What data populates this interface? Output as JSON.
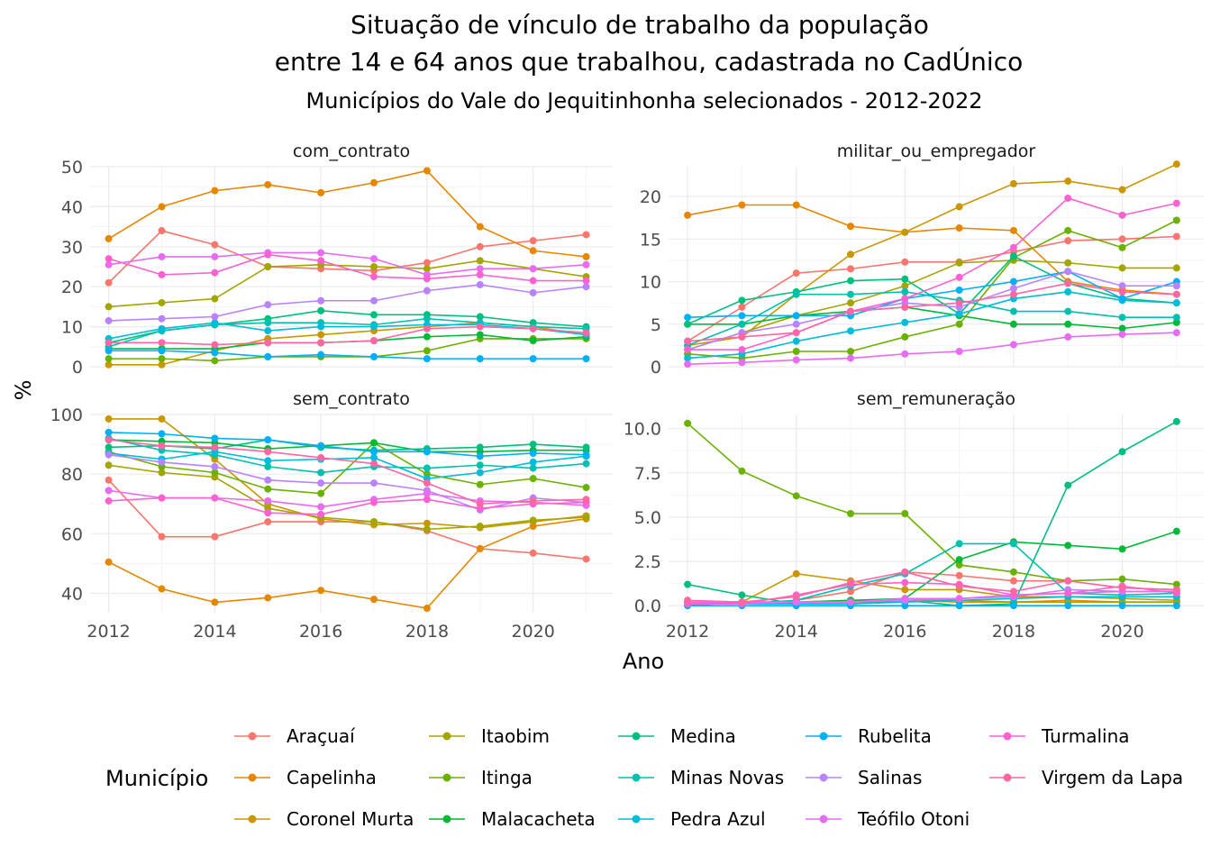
{
  "chart_data": {
    "type": "line",
    "title_lines": [
      "Situação de vínculo de trabalho da população",
      "entre 14 e 64 anos que trabalhou, cadastrada no CadÚnico"
    ],
    "subtitle": "Municípios do Vale do Jequitinhonha selecionados - 2012-2022",
    "xlabel": "Ano",
    "ylabel": "%",
    "legend_title": "Município",
    "legend_position": "bottom",
    "grid": true,
    "x": [
      2012,
      2013,
      2014,
      2015,
      2016,
      2017,
      2018,
      2019,
      2020,
      2021
    ],
    "x_ticks": [
      "2012",
      "2014",
      "2016",
      "2018",
      "2020"
    ],
    "municipios": [
      {
        "name": "Araçuaí",
        "color": "#F8766D"
      },
      {
        "name": "Capelinha",
        "color": "#E58700"
      },
      {
        "name": "Coronel Murta",
        "color": "#C99800"
      },
      {
        "name": "Itaobim",
        "color": "#A3A500"
      },
      {
        "name": "Itinga",
        "color": "#6BB100"
      },
      {
        "name": "Malacacheta",
        "color": "#00BA38"
      },
      {
        "name": "Medina",
        "color": "#00BF7D"
      },
      {
        "name": "Minas Novas",
        "color": "#00C0AF"
      },
      {
        "name": "Pedra Azul",
        "color": "#00BCD8"
      },
      {
        "name": "Rubelita",
        "color": "#00B0F6"
      },
      {
        "name": "Salinas",
        "color": "#B983FF"
      },
      {
        "name": "Teófilo Otoni",
        "color": "#E76BF3"
      },
      {
        "name": "Turmalina",
        "color": "#FD61D1"
      },
      {
        "name": "Virgem da Lapa",
        "color": "#FF67A4"
      }
    ],
    "facets": [
      {
        "label": "com_contrato",
        "ylim": [
          0,
          50
        ],
        "y_ticks": [
          "0",
          "10",
          "20",
          "30",
          "40",
          "50"
        ],
        "y_tick_values": [
          0,
          10,
          20,
          30,
          40,
          50
        ],
        "series": [
          {
            "name": "Araçuaí",
            "values": [
              21,
              34,
              30.5,
              25,
              24.5,
              24,
              26,
              30,
              31.5,
              33
            ]
          },
          {
            "name": "Capelinha",
            "values": [
              32,
              40,
              44,
              45.5,
              43.5,
              46,
              49,
              35,
              29,
              27.5
            ]
          },
          {
            "name": "Coronel Murta",
            "values": [
              0.5,
              0.5,
              4,
              7,
              8,
              9,
              10,
              11,
              10,
              8
            ]
          },
          {
            "name": "Itaobim",
            "values": [
              15,
              16,
              17,
              25,
              25.5,
              25,
              24.5,
              26.5,
              24.5,
              22.5
            ]
          },
          {
            "name": "Itinga",
            "values": [
              2,
              2,
              1.5,
              2.5,
              2.5,
              2.5,
              4,
              7,
              7,
              7
            ]
          },
          {
            "name": "Malacacheta",
            "values": [
              4.5,
              4.5,
              4.5,
              6,
              6,
              6.5,
              7.5,
              8,
              6.5,
              7.5
            ]
          },
          {
            "name": "Medina",
            "values": [
              6,
              9,
              10.5,
              12,
              14,
              13,
              13,
              12.5,
              11,
              10
            ]
          },
          {
            "name": "Minas Novas",
            "values": [
              5,
              9,
              10.5,
              11,
              11,
              10.5,
              12,
              11,
              10,
              9.5
            ]
          },
          {
            "name": "Pedra Azul",
            "values": [
              7,
              9.5,
              11,
              9,
              10,
              10,
              10.5,
              10.5,
              9.5,
              8
            ]
          },
          {
            "name": "Rubelita",
            "values": [
              4,
              4,
              3.5,
              2.5,
              3,
              2.5,
              2,
              2,
              2,
              2
            ]
          },
          {
            "name": "Salinas",
            "values": [
              11.5,
              12,
              12.5,
              15.5,
              16.5,
              16.5,
              19,
              20.5,
              18.5,
              20
            ]
          },
          {
            "name": "Teófilo Otoni",
            "values": [
              25.5,
              27.5,
              27.5,
              28.5,
              28.5,
              27,
              23,
              24.5,
              24.5,
              25.5
            ]
          },
          {
            "name": "Turmalina",
            "values": [
              27,
              23,
              23.5,
              28,
              26.5,
              22.5,
              22,
              23,
              21.5,
              21.5
            ]
          },
          {
            "name": "Virgem da Lapa",
            "values": [
              6,
              6,
              5.5,
              6,
              6,
              6.5,
              9.5,
              10,
              9.5,
              8.5
            ]
          }
        ]
      },
      {
        "label": "militar_ou_empregador",
        "ylim": [
          0,
          23.5
        ],
        "y_ticks": [
          "0",
          "5",
          "10",
          "15",
          "20"
        ],
        "y_tick_values": [
          0,
          5,
          10,
          15,
          20
        ],
        "series": [
          {
            "name": "Araçuaí",
            "values": [
              3,
              7,
              11,
              11.5,
              12.3,
              12.3,
              13.5,
              14.8,
              15,
              15.3
            ]
          },
          {
            "name": "Capelinha",
            "values": [
              17.8,
              19,
              19,
              16.5,
              15.8,
              16.3,
              16,
              10,
              9,
              8.5
            ]
          },
          {
            "name": "Coronel Murta",
            "values": [
              2.5,
              3.5,
              8.5,
              13.2,
              15.8,
              18.8,
              21.5,
              21.8,
              20.8,
              23.8
            ]
          },
          {
            "name": "Itaobim",
            "values": [
              2,
              4,
              6,
              7.5,
              9.5,
              12.2,
              12.5,
              12.2,
              11.6,
              11.6
            ]
          },
          {
            "name": "Itinga",
            "values": [
              1.5,
              1,
              1.8,
              1.8,
              3.5,
              5,
              12.8,
              16,
              14,
              17.2
            ]
          },
          {
            "name": "Malacacheta",
            "values": [
              5,
              5,
              6,
              6.5,
              7,
              6,
              5,
              5,
              4.5,
              5.2
            ]
          },
          {
            "name": "Medina",
            "values": [
              5,
              7.8,
              8.8,
              10.1,
              10.3,
              6.2,
              13,
              9.8,
              8,
              7.5
            ]
          },
          {
            "name": "Minas Novas",
            "values": [
              2.5,
              5,
              8.5,
              8.5,
              8.8,
              7.8,
              6.5,
              6.5,
              5.8,
              5.8
            ]
          },
          {
            "name": "Pedra Azul",
            "values": [
              1,
              1.5,
              3,
              4.2,
              5.2,
              6.2,
              8,
              8.8,
              7.8,
              7.5
            ]
          },
          {
            "name": "Rubelita",
            "values": [
              5.8,
              6,
              6,
              6,
              8,
              9,
              10,
              11.2,
              8,
              10
            ]
          },
          {
            "name": "Salinas",
            "values": [
              2,
              4,
              5,
              6.5,
              7.5,
              7,
              9.2,
              11.2,
              9.5,
              9.5
            ]
          },
          {
            "name": "Teófilo Otoni",
            "values": [
              0.3,
              0.5,
              0.8,
              1,
              1.5,
              1.8,
              2.6,
              3.5,
              3.8,
              4
            ]
          },
          {
            "name": "Turmalina",
            "values": [
              2,
              2,
              4,
              6.5,
              8,
              10.5,
              14,
              19.8,
              17.8,
              19.2
            ]
          },
          {
            "name": "Virgem da Lapa",
            "values": [
              3,
              3.5,
              4,
              6.5,
              7,
              7.5,
              8.5,
              9.8,
              8.8,
              8.5
            ]
          }
        ]
      },
      {
        "label": "sem_contrato",
        "ylim": [
          33.5,
          100
        ],
        "y_ticks": [
          "40",
          "60",
          "80",
          "100"
        ],
        "y_tick_values": [
          40,
          60,
          80,
          100
        ],
        "series": [
          {
            "name": "Araçuaí",
            "values": [
              78,
              59,
              59,
              64,
              64,
              64,
              61,
              55,
              53.5,
              51.5
            ]
          },
          {
            "name": "Capelinha",
            "values": [
              50.5,
              41.5,
              37,
              38.5,
              41,
              38,
              35,
              55,
              62.5,
              65
            ]
          },
          {
            "name": "Coronel Murta",
            "values": [
              98.5,
              98.5,
              85,
              70,
              65,
              63,
              63.5,
              62,
              64,
              66
            ]
          },
          {
            "name": "Itaobim",
            "values": [
              83,
              80.5,
              79,
              68.5,
              65.5,
              64,
              61.5,
              62.5,
              64.5,
              65.5
            ]
          },
          {
            "name": "Itinga",
            "values": [
              87.5,
              82.5,
              80.5,
              75,
              73.5,
              90.5,
              80,
              76.5,
              78.5,
              75.5
            ]
          },
          {
            "name": "Malacacheta",
            "values": [
              91.5,
              91,
              90.5,
              88.5,
              89.5,
              90.5,
              87.5,
              87.5,
              88,
              88
            ]
          },
          {
            "name": "Medina",
            "values": [
              89,
              89.5,
              88.5,
              91.5,
              89,
              88,
              88.5,
              89,
              90,
              89
            ]
          },
          {
            "name": "Minas Novas",
            "values": [
              92,
              88,
              86.5,
              82.5,
              80.5,
              82.5,
              82,
              83,
              82,
              83.5
            ]
          },
          {
            "name": "Pedra Azul",
            "values": [
              87,
              85,
              87.5,
              84.5,
              85,
              85.5,
              78.5,
              80.5,
              84,
              86
            ]
          },
          {
            "name": "Rubelita",
            "values": [
              94,
              93.5,
              92,
              91.5,
              89.5,
              87.5,
              87.5,
              86,
              87,
              86.5
            ]
          },
          {
            "name": "Salinas",
            "values": [
              86.5,
              84,
              82.5,
              78,
              77,
              77,
              74.5,
              68,
              72,
              70.5
            ]
          },
          {
            "name": "Teófilo Otoni",
            "values": [
              74.5,
              72,
              72,
              71,
              69,
              71.5,
              73.5,
              71,
              70.5,
              69.5
            ]
          },
          {
            "name": "Turmalina",
            "values": [
              71,
              72,
              72,
              67,
              66.5,
              70.5,
              71.5,
              68.5,
              70,
              70.5
            ]
          },
          {
            "name": "Virgem da Lapa",
            "values": [
              91.5,
              89.5,
              89,
              87.5,
              85.5,
              83.5,
              77,
              70,
              71,
              71.5
            ]
          }
        ]
      },
      {
        "label": "sem_remuneração",
        "ylim": [
          -0.4,
          10.8
        ],
        "y_ticks": [
          "0.0",
          "2.5",
          "5.0",
          "7.5",
          "10.0"
        ],
        "y_tick_values": [
          0,
          2.5,
          5,
          7.5,
          10
        ],
        "series": [
          {
            "name": "Araçuaí",
            "values": [
              0.1,
              0.1,
              0.3,
              0.8,
              1.9,
              1.7,
              1.4,
              1.4,
              1,
              0.9
            ]
          },
          {
            "name": "Capelinha",
            "values": [
              0.1,
              0.1,
              0.1,
              0.1,
              0.3,
              0.2,
              0.2,
              0.3,
              0.2,
              0.2
            ]
          },
          {
            "name": "Coronel Murta",
            "values": [
              0,
              0.2,
              1.8,
              1.4,
              0.9,
              0.9,
              0.5,
              0.5,
              0.4,
              0.3
            ]
          },
          {
            "name": "Itaobim",
            "values": [
              0.2,
              0.2,
              0.2,
              0.3,
              0.3,
              0.3,
              0.2,
              0.2,
              0.2,
              0.2
            ]
          },
          {
            "name": "Itinga",
            "values": [
              10.3,
              7.6,
              6.2,
              5.2,
              5.2,
              2.3,
              1.9,
              1.4,
              1.5,
              1.2
            ]
          },
          {
            "name": "Malacacheta",
            "values": [
              0.2,
              0.2,
              0.2,
              0.3,
              0.4,
              2.6,
              3.6,
              3.4,
              3.2,
              4.2
            ]
          },
          {
            "name": "Medina",
            "values": [
              1.2,
              0.6,
              0.1,
              0.1,
              0.3,
              0,
              0.1,
              6.8,
              8.7,
              10.4
            ]
          },
          {
            "name": "Minas Novas",
            "values": [
              0.2,
              0.1,
              0.3,
              1.1,
              1.8,
              3.5,
              3.5,
              0.7,
              0.6,
              0.7
            ]
          },
          {
            "name": "Pedra Azul",
            "values": [
              0.1,
              0.1,
              0.1,
              0.1,
              0.2,
              0.3,
              0.4,
              0.5,
              0.5,
              0.5
            ]
          },
          {
            "name": "Rubelita",
            "values": [
              0,
              0,
              0,
              0,
              0,
              0,
              0,
              0,
              0,
              0
            ]
          },
          {
            "name": "Salinas",
            "values": [
              0.1,
              0.1,
              0.2,
              0.2,
              0.3,
              0.4,
              0.5,
              0.9,
              0.8,
              0.8
            ]
          },
          {
            "name": "Teófilo Otoni",
            "values": [
              0.2,
              0.2,
              0.2,
              0.2,
              0.4,
              0.4,
              0.6,
              0.7,
              0.8,
              0.8
            ]
          },
          {
            "name": "Turmalina",
            "values": [
              0.1,
              0.1,
              0.6,
              1.2,
              1.3,
              1.2,
              0.6,
              0.7,
              1.1,
              0.7
            ]
          },
          {
            "name": "Virgem da Lapa",
            "values": [
              0.3,
              0.2,
              0.5,
              1.3,
              1.9,
              1.1,
              0.8,
              1.4,
              1,
              0.9
            ]
          }
        ]
      }
    ]
  }
}
